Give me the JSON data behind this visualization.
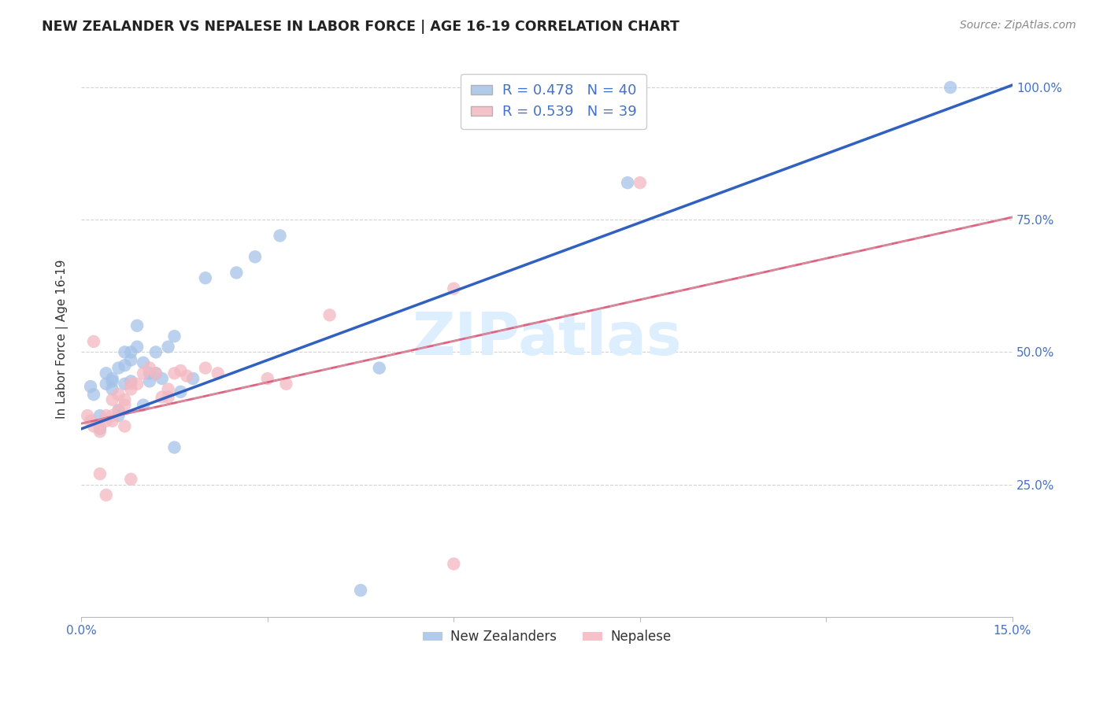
{
  "title": "NEW ZEALANDER VS NEPALESE IN LABOR FORCE | AGE 16-19 CORRELATION CHART",
  "source": "Source: ZipAtlas.com",
  "ylabel": "In Labor Force | Age 16-19",
  "xlim_min": 0.0,
  "xlim_max": 0.15,
  "ylim_min": 0.0,
  "ylim_max": 1.05,
  "nz_R": 0.478,
  "nz_N": 40,
  "np_R": 0.539,
  "np_N": 39,
  "nz_color": "#a4c2e8",
  "np_color": "#f4b8c1",
  "nz_line_color": "#3060c0",
  "np_line_color": "#e06080",
  "np_dash_color": "#d0a0a8",
  "background_color": "#ffffff",
  "grid_color": "#cccccc",
  "watermark_text": "ZIPatlas",
  "watermark_color": "#ddeeff",
  "axis_color": "#4472c4",
  "title_color": "#222222",
  "nz_x": [
    0.0015,
    0.002,
    0.003,
    0.003,
    0.004,
    0.004,
    0.005,
    0.005,
    0.005,
    0.006,
    0.006,
    0.006,
    0.007,
    0.007,
    0.007,
    0.008,
    0.008,
    0.008,
    0.009,
    0.009,
    0.01,
    0.01,
    0.011,
    0.011,
    0.012,
    0.012,
    0.013,
    0.014,
    0.015,
    0.015,
    0.016,
    0.018,
    0.02,
    0.025,
    0.028,
    0.032,
    0.045,
    0.048,
    0.088,
    0.14
  ],
  "nz_y": [
    0.435,
    0.42,
    0.355,
    0.38,
    0.44,
    0.46,
    0.43,
    0.445,
    0.45,
    0.47,
    0.38,
    0.39,
    0.475,
    0.5,
    0.44,
    0.485,
    0.5,
    0.445,
    0.51,
    0.55,
    0.4,
    0.48,
    0.445,
    0.46,
    0.46,
    0.5,
    0.45,
    0.51,
    0.53,
    0.32,
    0.425,
    0.45,
    0.64,
    0.65,
    0.68,
    0.72,
    0.05,
    0.47,
    0.82,
    1.0
  ],
  "np_x": [
    0.001,
    0.0015,
    0.002,
    0.003,
    0.003,
    0.004,
    0.004,
    0.005,
    0.005,
    0.005,
    0.006,
    0.006,
    0.007,
    0.007,
    0.007,
    0.008,
    0.008,
    0.009,
    0.01,
    0.011,
    0.012,
    0.013,
    0.014,
    0.014,
    0.015,
    0.016,
    0.017,
    0.02,
    0.022,
    0.03,
    0.033,
    0.04,
    0.06,
    0.06,
    0.002,
    0.003,
    0.004,
    0.008,
    0.09
  ],
  "np_y": [
    0.38,
    0.37,
    0.36,
    0.35,
    0.36,
    0.37,
    0.38,
    0.37,
    0.38,
    0.41,
    0.39,
    0.42,
    0.36,
    0.4,
    0.41,
    0.43,
    0.44,
    0.44,
    0.46,
    0.47,
    0.46,
    0.415,
    0.415,
    0.43,
    0.46,
    0.465,
    0.455,
    0.47,
    0.46,
    0.45,
    0.44,
    0.57,
    0.62,
    0.1,
    0.52,
    0.27,
    0.23,
    0.26,
    0.82
  ],
  "nz_line_intercept": 0.355,
  "nz_line_slope": 4.33,
  "np_line_intercept": 0.365,
  "np_line_slope": 2.6
}
